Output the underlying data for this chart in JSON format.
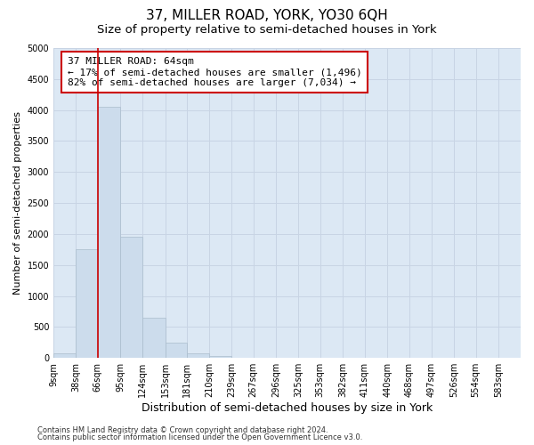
{
  "title": "37, MILLER ROAD, YORK, YO30 6QH",
  "subtitle": "Size of property relative to semi-detached houses in York",
  "xlabel": "Distribution of semi-detached houses by size in York",
  "ylabel": "Number of semi-detached properties",
  "footnote1": "Contains HM Land Registry data © Crown copyright and database right 2024.",
  "footnote2": "Contains public sector information licensed under the Open Government Licence v3.0.",
  "property_label": "37 MILLER ROAD: 64sqm",
  "annotation_line1": "← 17% of semi-detached houses are smaller (1,496)",
  "annotation_line2": "82% of semi-detached houses are larger (7,034) →",
  "bar_left_edges": [
    9,
    38,
    66,
    95,
    124,
    153,
    181,
    210,
    239,
    267,
    296,
    325,
    353,
    382,
    411,
    440,
    468,
    497,
    526,
    554
  ],
  "bar_widths": [
    29,
    28,
    29,
    29,
    29,
    28,
    29,
    29,
    28,
    29,
    29,
    28,
    29,
    29,
    29,
    28,
    29,
    29,
    28,
    29
  ],
  "bar_heights": [
    75,
    1750,
    4050,
    1950,
    650,
    240,
    80,
    30,
    0,
    0,
    0,
    0,
    0,
    0,
    0,
    0,
    0,
    0,
    0,
    0
  ],
  "bar_color": "#ccdcec",
  "bar_edge_color": "#aabccc",
  "vline_color": "#cc0000",
  "vline_x": 66,
  "ylim": [
    0,
    5000
  ],
  "yticks": [
    0,
    500,
    1000,
    1500,
    2000,
    2500,
    3000,
    3500,
    4000,
    4500,
    5000
  ],
  "xtick_labels": [
    "9sqm",
    "38sqm",
    "66sqm",
    "95sqm",
    "124sqm",
    "153sqm",
    "181sqm",
    "210sqm",
    "239sqm",
    "267sqm",
    "296sqm",
    "325sqm",
    "353sqm",
    "382sqm",
    "411sqm",
    "440sqm",
    "468sqm",
    "497sqm",
    "526sqm",
    "554sqm",
    "583sqm"
  ],
  "xtick_positions": [
    9,
    38,
    66,
    95,
    124,
    153,
    181,
    210,
    239,
    267,
    296,
    325,
    353,
    382,
    411,
    440,
    468,
    497,
    526,
    554,
    583
  ],
  "xlim_left": 9,
  "xlim_right": 612,
  "grid_color": "#c8d4e4",
  "bg_color": "#dce8f4",
  "fig_bg_color": "#ffffff",
  "annotation_box_facecolor": "#ffffff",
  "annotation_box_edgecolor": "#cc0000",
  "title_fontsize": 11,
  "subtitle_fontsize": 9.5,
  "xlabel_fontsize": 9,
  "ylabel_fontsize": 8,
  "tick_fontsize": 7,
  "annotation_fontsize": 8,
  "footnote_fontsize": 6
}
